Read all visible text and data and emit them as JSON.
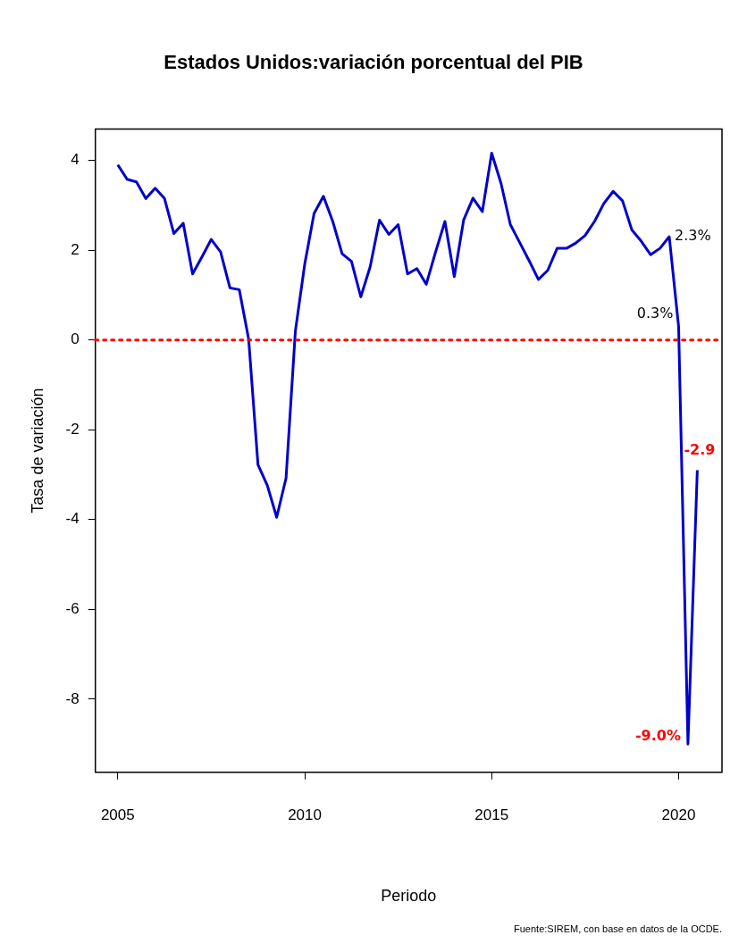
{
  "chart_data": {
    "type": "line",
    "title": "Estados Unidos:variación porcentual del PIB",
    "xlabel": "Periodo",
    "ylabel": "Tasa de variación",
    "x": [
      2005,
      2005.25,
      2005.5,
      2005.75,
      2006,
      2006.25,
      2006.5,
      2006.75,
      2007,
      2007.25,
      2007.5,
      2007.75,
      2008,
      2008.25,
      2008.5,
      2008.75,
      2009,
      2009.25,
      2009.5,
      2009.75,
      2010,
      2010.25,
      2010.5,
      2010.75,
      2011,
      2011.25,
      2011.5,
      2011.75,
      2012,
      2012.25,
      2012.5,
      2012.75,
      2013,
      2013.25,
      2013.5,
      2013.75,
      2014,
      2014.25,
      2014.5,
      2014.75,
      2015,
      2015.25,
      2015.5,
      2015.75,
      2016,
      2016.25,
      2016.5,
      2016.75,
      2017,
      2017.25,
      2017.5,
      2017.75,
      2018,
      2018.25,
      2018.5,
      2018.75,
      2019,
      2019.25,
      2019.5,
      2019.75,
      2020,
      2020.25,
      2020.5
    ],
    "series": [
      {
        "color": "#0000cc",
        "values": [
          3.9,
          3.58,
          3.52,
          3.15,
          3.38,
          3.15,
          2.37,
          2.6,
          1.47,
          1.85,
          2.24,
          1.96,
          1.16,
          1.12,
          0.02,
          -2.78,
          -3.24,
          -3.95,
          -3.08,
          0.2,
          1.69,
          2.82,
          3.2,
          2.64,
          1.92,
          1.75,
          0.96,
          1.63,
          2.67,
          2.35,
          2.57,
          1.47,
          1.59,
          1.24,
          1.96,
          2.64,
          1.41,
          2.67,
          3.16,
          2.86,
          4.16,
          3.49,
          2.57,
          2.17,
          1.77,
          1.35,
          1.55,
          2.04,
          2.04,
          2.16,
          2.33,
          2.64,
          3.04,
          3.31,
          3.1,
          2.45,
          2.2,
          1.9,
          2.04,
          2.3,
          0.3,
          -9.0,
          -2.9
        ],
        "value_labels": [
          null,
          null,
          null,
          null,
          null,
          null,
          null,
          null,
          null,
          null,
          null,
          null,
          null,
          null,
          null,
          null,
          null,
          null,
          null,
          null,
          null,
          null,
          null,
          null,
          null,
          null,
          null,
          null,
          null,
          null,
          null,
          null,
          null,
          null,
          null,
          null,
          null,
          null,
          null,
          null,
          null,
          null,
          null,
          null,
          null,
          null,
          null,
          null,
          null,
          null,
          null,
          null,
          null,
          null,
          null,
          null,
          null,
          null,
          null,
          "2.3%",
          "0.3%",
          "-9.0%",
          "-2.9"
        ]
      }
    ],
    "xlim": [
      2004.4,
      2021.16
    ],
    "xticks": [
      2005,
      2010,
      2015,
      2020
    ],
    "ylim": [
      -9.63,
      4.7
    ],
    "yticks": [
      -8,
      -6,
      -4,
      -2,
      0,
      2,
      4
    ],
    "ref_lines": [
      {
        "axis": "y",
        "value": 0,
        "color": "#ff0000",
        "line_style": "dotted"
      }
    ],
    "grid": false,
    "legend": false,
    "marker": "none",
    "line_style": "solid",
    "annotations": [
      "Fuente:SIREM, con base en datos de la OCDE."
    ]
  }
}
